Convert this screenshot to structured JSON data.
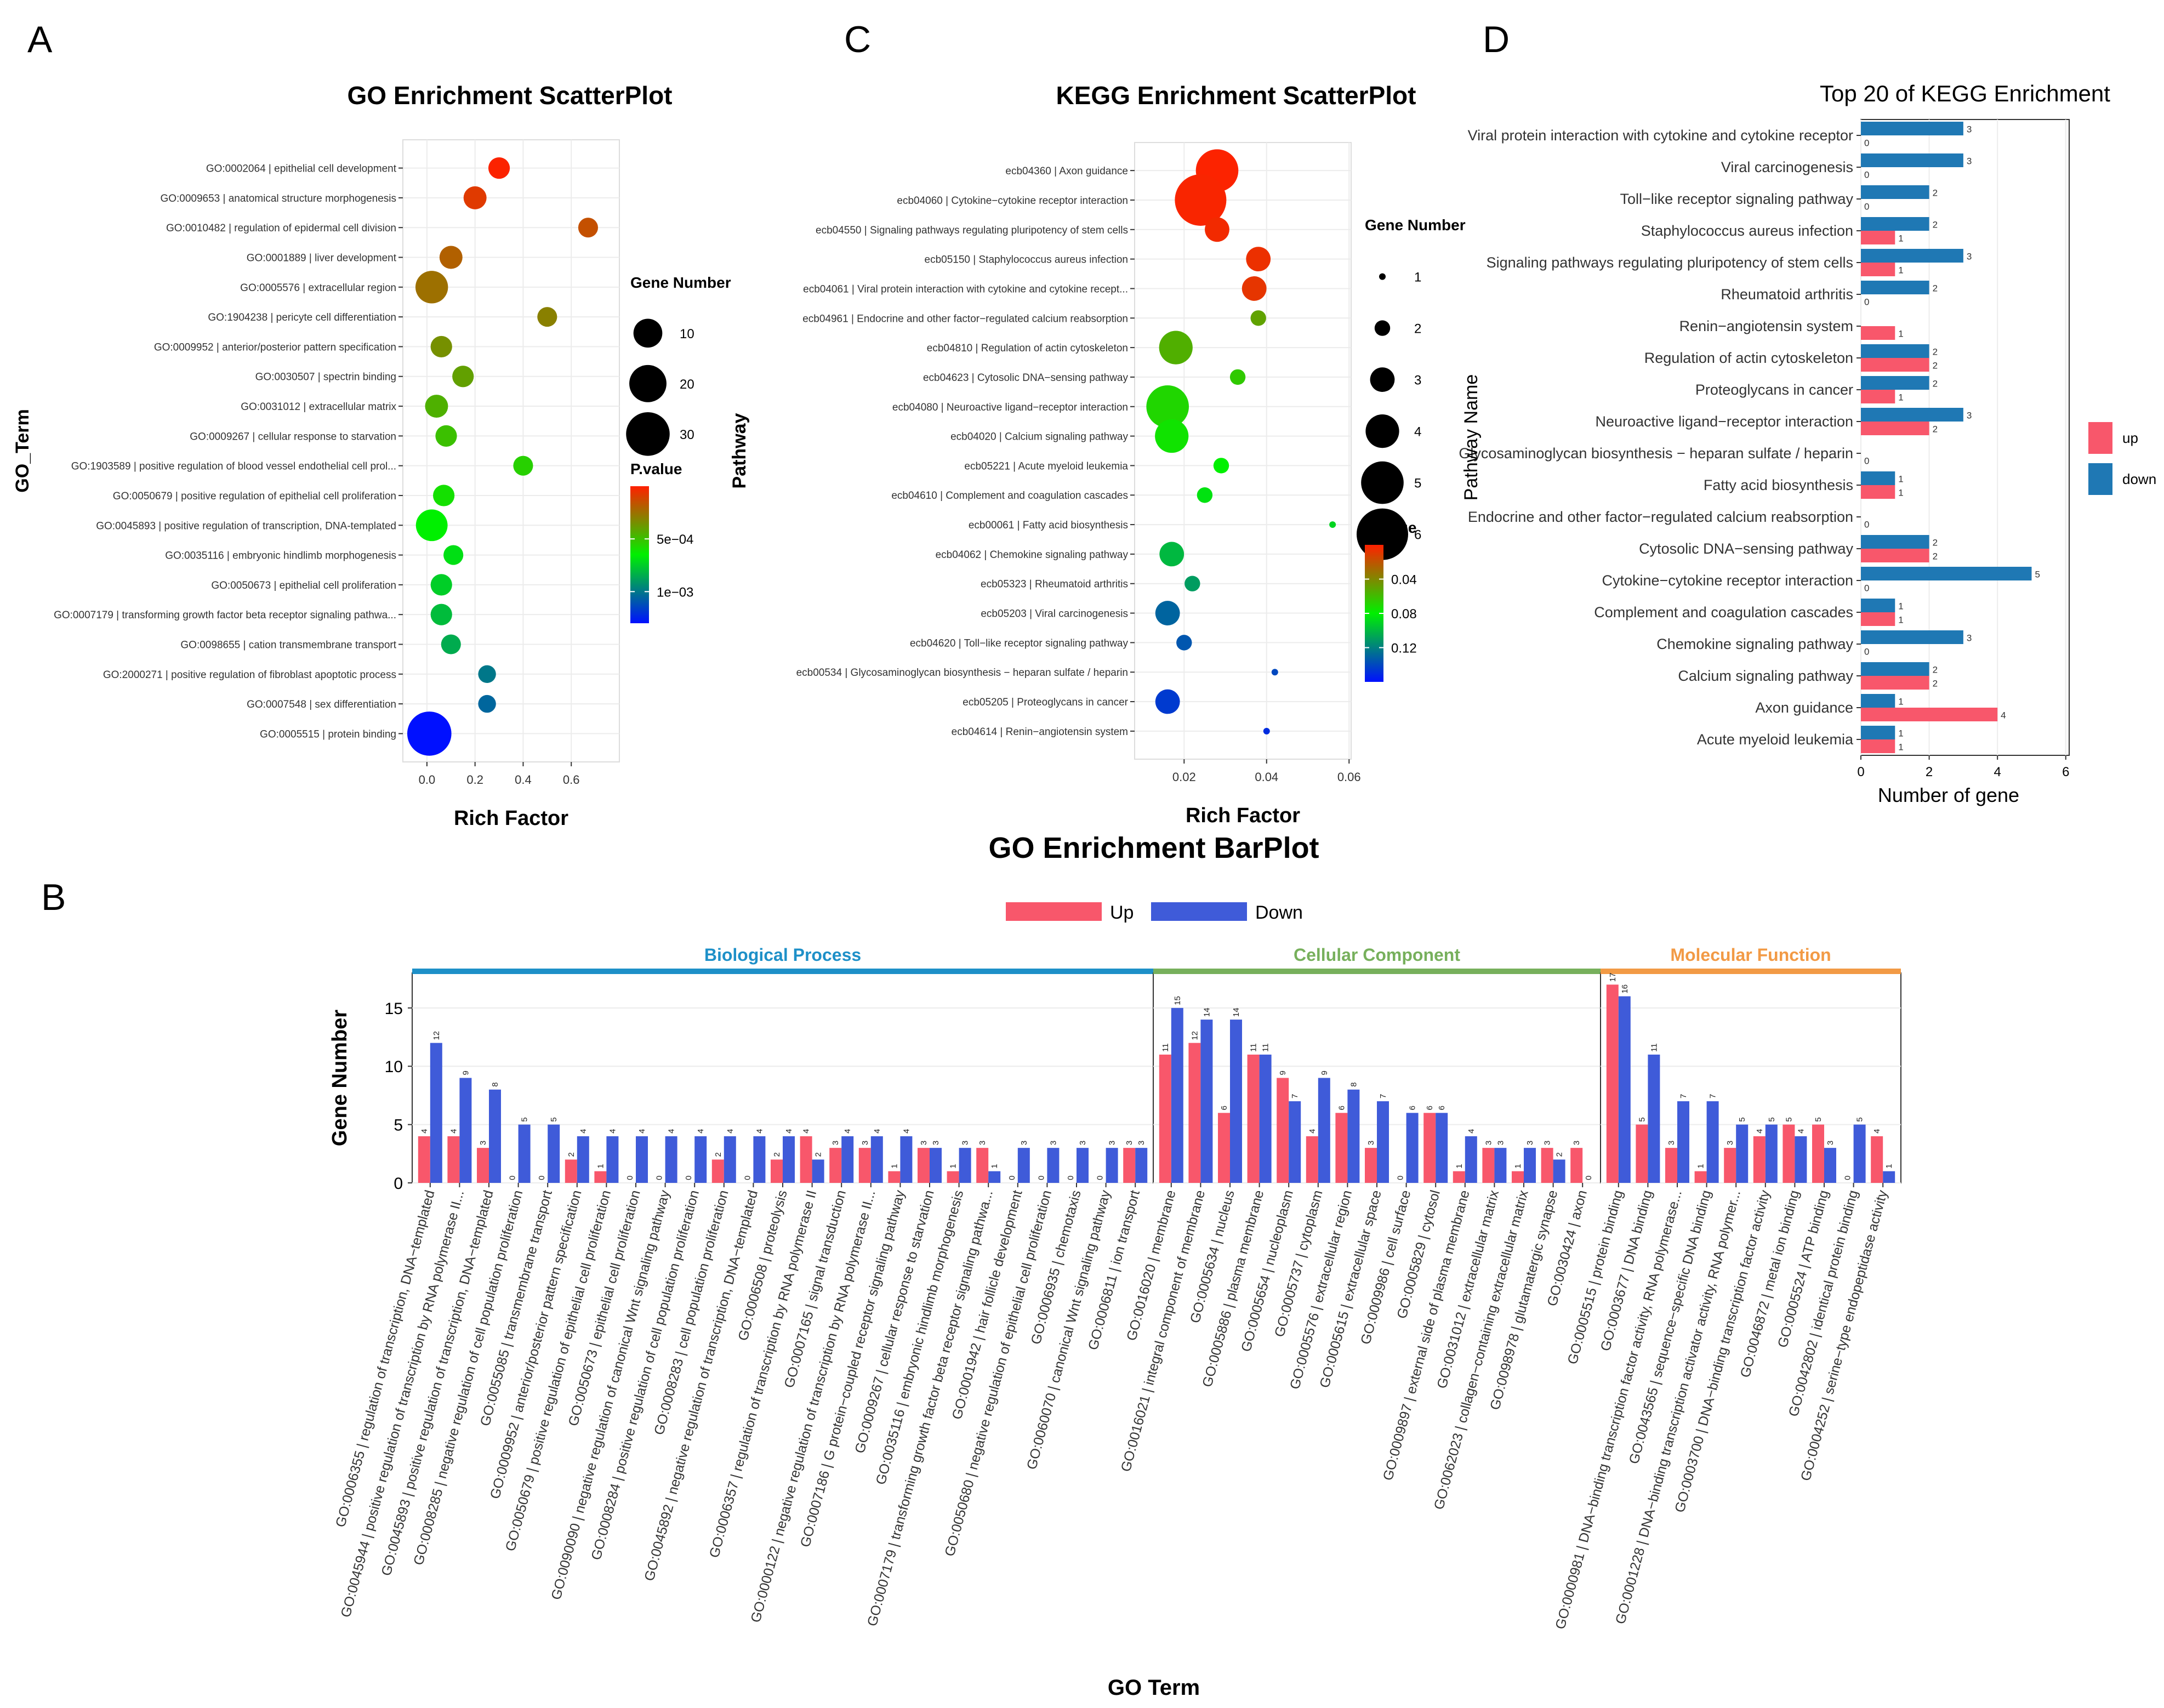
{
  "panels": {
    "a": "A",
    "b": "B",
    "c": "C",
    "d": "D"
  },
  "chart_data": [
    {
      "id": "go_scatter",
      "type": "scatter",
      "title": "GO Enrichment ScatterPlot",
      "xlabel": "Rich Factor",
      "ylabel": "GO_Term",
      "xlim": [
        -0.1,
        0.8
      ],
      "xticks": [
        0.0,
        0.2,
        0.4,
        0.6
      ],
      "xtick_labels": [
        "0.0",
        "0.2",
        "0.4",
        "0.6"
      ],
      "size_legend": {
        "title": "Gene Number",
        "values": [
          10,
          20,
          30
        ],
        "labels": [
          "10",
          "20",
          "30"
        ]
      },
      "color_legend": {
        "title": "P.value",
        "tick_values": [
          0.0005,
          0.001
        ],
        "tick_labels": [
          "5e−04",
          "1e−03"
        ],
        "range": [
          0,
          0.0013
        ]
      },
      "points": [
        {
          "term": "GO:0002064 | epithelial cell development",
          "x": 0.3,
          "size": 4,
          "p": 1e-05
        },
        {
          "term": "GO:0009653 | anatomical structure morphogenesis",
          "x": 0.2,
          "size": 5,
          "p": 8e-05
        },
        {
          "term": "GO:0010482 | regulation of epidermal cell division",
          "x": 0.67,
          "size": 3,
          "p": 0.00015
        },
        {
          "term": "GO:0001889 | liver development",
          "x": 0.1,
          "size": 5,
          "p": 0.0002
        },
        {
          "term": "GO:0005576 | extracellular region",
          "x": 0.02,
          "size": 14,
          "p": 0.00025
        },
        {
          "term": "GO:1904238 | pericyte cell differentiation",
          "x": 0.5,
          "size": 3,
          "p": 0.0003
        },
        {
          "term": "GO:0009952 | anterior/posterior pattern specification",
          "x": 0.06,
          "size": 4,
          "p": 0.00035
        },
        {
          "term": "GO:0030507 | spectrin binding",
          "x": 0.15,
          "size": 4,
          "p": 0.0004
        },
        {
          "term": "GO:0031012 | extracellular matrix",
          "x": 0.04,
          "size": 5,
          "p": 0.00045
        },
        {
          "term": "GO:0009267 | cellular response to starvation",
          "x": 0.08,
          "size": 4,
          "p": 0.0005
        },
        {
          "term": "GO:1903589 | positive regulation of blood vessel endothelial cell prol...",
          "x": 0.4,
          "size": 3,
          "p": 0.00055
        },
        {
          "term": "GO:0050679 | positive regulation of epithelial cell proliferation",
          "x": 0.07,
          "size": 4,
          "p": 0.0006
        },
        {
          "term": "GO:0045893 | positive regulation of transcription, DNA-templated",
          "x": 0.02,
          "size": 13,
          "p": 0.00065
        },
        {
          "term": "GO:0035116 | embryonic hindlimb morphogenesis",
          "x": 0.11,
          "size": 3,
          "p": 0.0007
        },
        {
          "term": "GO:0050673 | epithelial cell proliferation",
          "x": 0.06,
          "size": 4,
          "p": 0.00075
        },
        {
          "term": "GO:0007179 | transforming growth factor beta receptor signaling pathwa...",
          "x": 0.06,
          "size": 4,
          "p": 0.0008
        },
        {
          "term": "GO:0098655 | cation transmembrane transport",
          "x": 0.1,
          "size": 3,
          "p": 0.00085
        },
        {
          "term": "GO:2000271 | positive regulation of fibroblast apoptotic process",
          "x": 0.25,
          "size": 2,
          "p": 0.001
        },
        {
          "term": "GO:0007548 | sex differentiation",
          "x": 0.25,
          "size": 2,
          "p": 0.00105
        },
        {
          "term": "GO:0005515 | protein binding",
          "x": 0.01,
          "size": 31,
          "p": 0.0013
        }
      ]
    },
    {
      "id": "kegg_scatter",
      "type": "scatter",
      "title": "KEGG Enrichment ScatterPlot",
      "xlabel": "Rich Factor",
      "ylabel": "Pathway",
      "xlim": [
        0.008,
        0.0605
      ],
      "xticks": [
        0.02,
        0.04,
        0.06
      ],
      "xtick_labels": [
        "0.02",
        "0.04",
        "0.06"
      ],
      "size_legend": {
        "title": "Gene Number",
        "values": [
          1,
          2,
          3,
          4,
          5,
          6
        ],
        "labels": [
          "1",
          "2",
          "3",
          "4",
          "5",
          "6"
        ]
      },
      "color_legend": {
        "title": "P.value",
        "tick_values": [
          0.04,
          0.08,
          0.12
        ],
        "tick_labels": [
          "0.04",
          "0.08",
          "0.12"
        ],
        "range": [
          0,
          0.16
        ]
      },
      "points": [
        {
          "term": "ecb04360 | Axon guidance",
          "x": 0.028,
          "size": 5,
          "p": 0.001
        },
        {
          "term": "ecb04060 | Cytokine−cytokine receptor interaction",
          "x": 0.024,
          "size": 6,
          "p": 0.002
        },
        {
          "term": "ecb04550 | Signaling pathways regulating pluripotency of stem cells",
          "x": 0.028,
          "size": 3,
          "p": 0.004
        },
        {
          "term": "ecb05150 | Staphylococcus aureus infection",
          "x": 0.038,
          "size": 3,
          "p": 0.006
        },
        {
          "term": "ecb04061 | Viral protein interaction with cytokine and cytokine recept...",
          "x": 0.037,
          "size": 3,
          "p": 0.008
        },
        {
          "term": "ecb04961 | Endocrine and other factor−regulated calcium reabsorption",
          "x": 0.038,
          "size": 2,
          "p": 0.05
        },
        {
          "term": "ecb04810 | Regulation of actin cytoskeleton",
          "x": 0.018,
          "size": 4,
          "p": 0.055
        },
        {
          "term": "ecb04623 | Cytosolic DNA−sensing pathway",
          "x": 0.033,
          "size": 2,
          "p": 0.065
        },
        {
          "term": "ecb04080 | Neuroactive ligand−receptor interaction",
          "x": 0.016,
          "size": 5,
          "p": 0.07
        },
        {
          "term": "ecb04020 | Calcium signaling pathway",
          "x": 0.017,
          "size": 4,
          "p": 0.075
        },
        {
          "term": "ecb05221 | Acute myeloid leukemia",
          "x": 0.029,
          "size": 2,
          "p": 0.08
        },
        {
          "term": "ecb04610 | Complement and coagulation cascades",
          "x": 0.025,
          "size": 2,
          "p": 0.085
        },
        {
          "term": "ecb00061 | Fatty acid biosynthesis",
          "x": 0.056,
          "size": 1,
          "p": 0.09
        },
        {
          "term": "ecb04062 | Chemokine signaling pathway",
          "x": 0.017,
          "size": 3,
          "p": 0.1
        },
        {
          "term": "ecb05323 | Rheumatoid arthritis",
          "x": 0.022,
          "size": 2,
          "p": 0.11
        },
        {
          "term": "ecb05203 | Viral carcinogenesis",
          "x": 0.016,
          "size": 3,
          "p": 0.13
        },
        {
          "term": "ecb04620 | Toll−like receptor signaling pathway",
          "x": 0.02,
          "size": 2,
          "p": 0.135
        },
        {
          "term": "ecb00534 | Glycosaminoglycan biosynthesis − heparan sulfate / heparin",
          "x": 0.042,
          "size": 1,
          "p": 0.14
        },
        {
          "term": "ecb05205 | Proteoglycans in cancer",
          "x": 0.016,
          "size": 3,
          "p": 0.145
        },
        {
          "term": "ecb04614 | Renin−angiotensin system",
          "x": 0.04,
          "size": 1,
          "p": 0.15
        }
      ]
    },
    {
      "id": "kegg_bar",
      "type": "bar",
      "orientation": "horizontal",
      "title": "Top 20 of KEGG Enrichment",
      "xlabel": "Number of gene",
      "ylabel": "Pathway Name",
      "xlim": [
        0,
        6.1
      ],
      "xticks": [
        0,
        2,
        4,
        6
      ],
      "xtick_labels": [
        "0",
        "2",
        "4",
        "6"
      ],
      "legend": [
        {
          "name": "up",
          "color": "#F8576B"
        },
        {
          "name": "down",
          "color": "#1F78B4"
        }
      ],
      "categories": [
        "Viral protein interaction with cytokine and cytokine receptor",
        "Viral carcinogenesis",
        "Toll−like receptor signaling pathway",
        "Staphylococcus aureus infection",
        "Signaling pathways regulating pluripotency of stem cells",
        "Rheumatoid arthritis",
        "Renin−angiotensin system",
        "Regulation of actin cytoskeleton",
        "Proteoglycans in cancer",
        "Neuroactive ligand−receptor interaction",
        "Glycosaminoglycan biosynthesis − heparan sulfate / heparin",
        "Fatty acid biosynthesis",
        "Endocrine and other factor−regulated calcium reabsorption",
        "Cytosolic DNA−sensing pathway",
        "Cytokine−cytokine receptor interaction",
        "Complement and coagulation cascades",
        "Chemokine signaling pathway",
        "Calcium signaling pathway",
        "Axon guidance",
        "Acute myeloid leukemia"
      ],
      "series": [
        {
          "name": "down",
          "values": [
            3,
            3,
            2,
            2,
            3,
            2,
            null,
            2,
            2,
            3,
            null,
            1,
            null,
            2,
            5,
            1,
            3,
            2,
            1,
            1
          ]
        },
        {
          "name": "up",
          "values": [
            0,
            0,
            0,
            1,
            1,
            0,
            1,
            2,
            1,
            2,
            0,
            1,
            0,
            2,
            0,
            1,
            0,
            2,
            4,
            1
          ]
        }
      ],
      "bar_labels": {
        "down": [
          "3",
          "3",
          "2",
          "2",
          "3",
          "2",
          null,
          "2",
          "2",
          "3",
          null,
          "1",
          null,
          "2",
          "5",
          "1",
          "3",
          "2",
          "1",
          "1"
        ],
        "up": [
          "0",
          "0",
          "0",
          "1",
          "1",
          "0",
          "1",
          "2",
          "1",
          "2",
          "0",
          "1",
          "0",
          "2",
          "0",
          "1",
          "0",
          "2",
          "4",
          "1"
        ]
      }
    },
    {
      "id": "go_bar",
      "type": "bar",
      "title": "GO Enrichment BarPlot",
      "xlabel": "GO Term",
      "ylabel": "Gene Number",
      "ylim": [
        0,
        18
      ],
      "yticks": [
        0,
        5,
        10,
        15
      ],
      "ytick_labels": [
        "0",
        "5",
        "10",
        "15"
      ],
      "legend": [
        {
          "name": "Up",
          "color": "#F8576B"
        },
        {
          "name": "Down",
          "color": "#3F5BD9"
        }
      ],
      "groups": [
        {
          "name": "Biological Process",
          "color": "#1E90C8",
          "start": 0,
          "count": 25
        },
        {
          "name": "Cellular Component",
          "color": "#77B05C",
          "start": 25,
          "count": 15
        },
        {
          "name": "Molecular Function",
          "color": "#F29A45",
          "start": 40,
          "count": 10
        }
      ],
      "categories": [
        "GO:0006355 | regulation of transcription, DNA−templated",
        "GO:0045944 | positive regulation of transcription by RNA polymerase II...",
        "GO:0045893 | positive regulation of transcription, DNA−templated",
        "GO:0008285 | negative regulation of cell population proliferation",
        "GO:0055085 | transmembrane transport",
        "GO:0009952 | anterior/posterior pattern specification",
        "GO:0050679 | positive regulation of epithelial cell proliferation",
        "GO:0050673 | epithelial cell proliferation",
        "GO:0090090 | negative regulation of canonical Wnt signaling pathway",
        "GO:0008284 | positive regulation of cell population proliferation",
        "GO:0008283 | cell population proliferation",
        "GO:0045892 | negative regulation of transcription, DNA−templated",
        "GO:0006508 | proteolysis",
        "GO:0006357 | regulation of transcription by RNA polymerase II",
        "GO:0007165 | signal transduction",
        "GO:0000122 | negative regulation of transcription by RNA polymerase II...",
        "GO:0007186 | G protein−coupled receptor signaling pathway",
        "GO:0009267 | cellular response to starvation",
        "GO:0035116 | embryonic hindlimb morphogenesis",
        "GO:0007179 | transforming growth factor beta receptor signaling pathwa...",
        "GO:0001942 | hair follicle development",
        "GO:0050680 | negative regulation of epithelial cell proliferation",
        "GO:0006935 | chemotaxis",
        "GO:0060070 | canonical Wnt signaling pathway",
        "GO:0006811 | ion transport",
        "GO:0016020 | membrane",
        "GO:0016021 | integral component of membrane",
        "GO:0005634 | nucleus",
        "GO:0005886 | plasma membrane",
        "GO:0005654 | nucleoplasm",
        "GO:0005737 | cytoplasm",
        "GO:0005576 | extracellular region",
        "GO:0005615 | extracellular space",
        "GO:0009986 | cell surface",
        "GO:0005829 | cytosol",
        "GO:0009897 | external side of plasma membrane",
        "GO:0031012 | extracellular matrix",
        "GO:0062023 | collagen−containing extracellular matrix",
        "GO:0098978 | glutamatergic synapse",
        "GO:0030424 | axon",
        "GO:0005515 | protein binding",
        "GO:0003677 | DNA binding",
        "GO:0000981 | DNA−binding transcription factor activity, RNA polymerase...",
        "GO:0043565 | sequence−specific DNA binding",
        "GO:0001228 | DNA−binding transcription activator activity, RNA polymer...",
        "GO:0003700 | DNA−binding transcription factor activity",
        "GO:0046872 | metal ion binding",
        "GO:0005524 | ATP binding",
        "GO:0042802 | identical protein binding",
        "GO:0004252 | serine−type endopeptidase activity"
      ],
      "series": [
        {
          "name": "Up",
          "values": [
            4,
            4,
            3,
            0,
            0,
            2,
            1,
            0,
            0,
            0,
            2,
            0,
            2,
            4,
            3,
            3,
            1,
            3,
            1,
            3,
            0,
            0,
            0,
            0,
            3,
            11,
            12,
            6,
            11,
            9,
            4,
            6,
            3,
            0,
            6,
            1,
            3,
            1,
            3,
            3,
            17,
            5,
            3,
            1,
            3,
            4,
            5,
            5,
            0,
            4
          ]
        },
        {
          "name": "Down",
          "values": [
            12,
            9,
            8,
            5,
            5,
            4,
            4,
            4,
            4,
            4,
            4,
            4,
            4,
            2,
            4,
            4,
            4,
            3,
            3,
            1,
            3,
            3,
            3,
            3,
            3,
            15,
            14,
            14,
            11,
            7,
            9,
            8,
            7,
            6,
            6,
            4,
            3,
            3,
            2,
            0,
            16,
            11,
            7,
            7,
            5,
            5,
            4,
            3,
            5,
            1
          ]
        }
      ]
    }
  ]
}
